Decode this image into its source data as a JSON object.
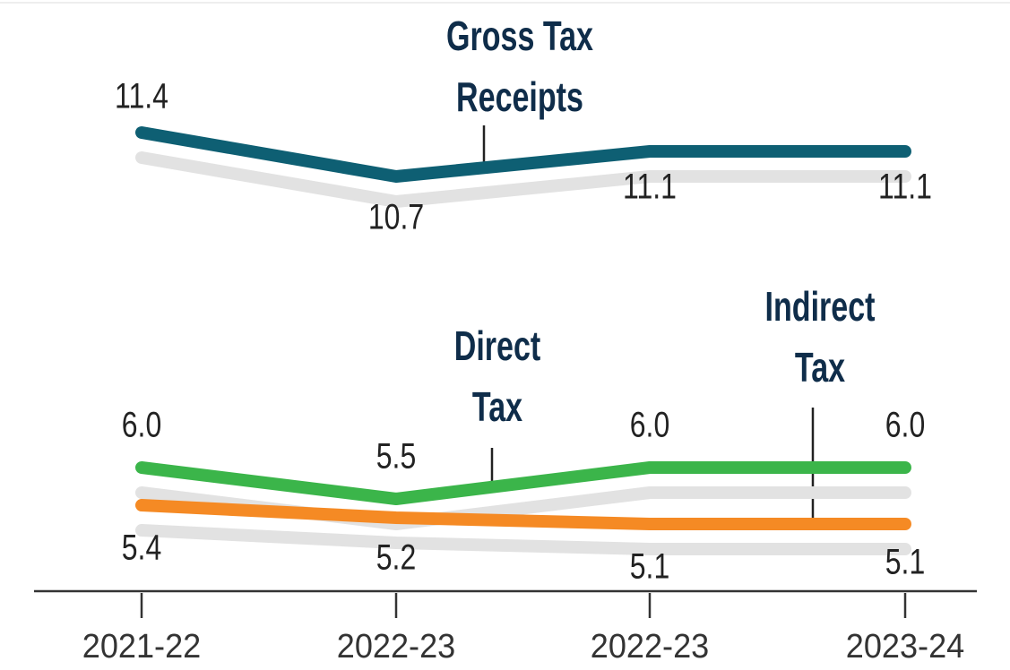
{
  "chart_data": [
    {
      "type": "line",
      "series": [
        {
          "name": "Gross Tax Receipts",
          "color": "#0e5f73",
          "values": [
            11.4,
            10.7,
            11.1,
            11.1
          ]
        }
      ]
    },
    {
      "type": "line",
      "categories": [
        "2021-22",
        "2022-23",
        "2022-23",
        "2023-24"
      ],
      "series": [
        {
          "name": "Direct Tax",
          "color": "#3bb54a",
          "values": [
            6,
            5.5,
            6,
            6
          ],
          "value_labels": [
            "6.0",
            "5.5",
            "6.0",
            "6.0"
          ]
        },
        {
          "name": "Indirect Tax",
          "color": "#f58a24",
          "values": [
            5.4,
            5.2,
            5.1,
            5.1
          ]
        }
      ]
    }
  ]
}
